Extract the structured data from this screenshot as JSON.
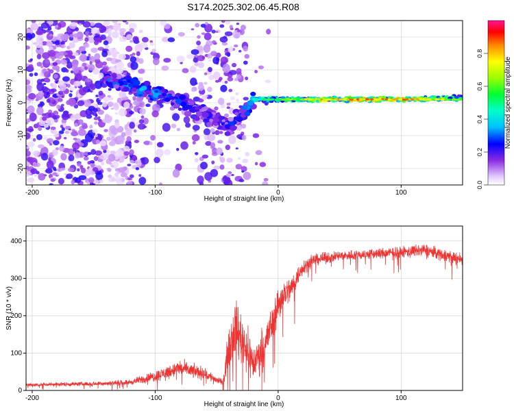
{
  "title": "S174.2025.302.06.45.R08",
  "colors": {
    "snr_line": "#ee3333",
    "grid": "#cccccc",
    "axis": "#000000",
    "dot": "#8a2be2"
  },
  "chart_data": [
    {
      "type": "heatmap",
      "xlabel": "Height of straight line (km)",
      "ylabel": "Frequency (Hz)",
      "xlim": [
        -205,
        150
      ],
      "ylim": [
        -25,
        25
      ],
      "xticks": [
        -200,
        -100,
        0,
        100
      ],
      "yticks": [
        -20,
        -10,
        0,
        10,
        20
      ],
      "colorbar": {
        "label": "Normalized spectral amplitude",
        "ticks": [
          0.0,
          0.2,
          0.4,
          0.6,
          0.8
        ],
        "tick_labels": [
          "0.0",
          "0.2",
          "0.4",
          "0.6",
          "0.8"
        ],
        "range": [
          0,
          1
        ]
      },
      "ridge": {
        "x": [
          -140,
          -120,
          -100,
          -80,
          -60,
          -40,
          -30,
          -20,
          0,
          50,
          100,
          150
        ],
        "freq": [
          7,
          5,
          3,
          0,
          -3,
          -7,
          -4,
          1,
          1,
          1,
          1,
          1.5
        ],
        "amplitude": [
          0.3,
          0.35,
          0.35,
          0.3,
          0.25,
          0.25,
          0.3,
          0.45,
          0.6,
          0.85,
          0.85,
          0.6
        ]
      }
    },
    {
      "type": "line",
      "xlabel": "Height of straight line (km)",
      "ylabel": "SNR (10 * v/v)",
      "xlim": [
        -205,
        150
      ],
      "ylim": [
        0,
        440
      ],
      "xticks": [
        -200,
        -100,
        0,
        100
      ],
      "yticks": [
        0,
        100,
        200,
        300,
        400
      ],
      "envelope": {
        "x": [
          -205,
          -150,
          -120,
          -100,
          -80,
          -60,
          -45,
          -40,
          -35,
          -25,
          -20,
          -10,
          0,
          5,
          10,
          20,
          30,
          50,
          100,
          120,
          150
        ],
        "mean": [
          15,
          18,
          22,
          38,
          60,
          45,
          20,
          120,
          170,
          110,
          70,
          130,
          230,
          260,
          270,
          330,
          350,
          360,
          370,
          375,
          350
        ],
        "spread": [
          8,
          8,
          10,
          22,
          30,
          25,
          12,
          80,
          110,
          90,
          70,
          80,
          70,
          60,
          50,
          30,
          22,
          20,
          22,
          25,
          25
        ]
      }
    }
  ]
}
